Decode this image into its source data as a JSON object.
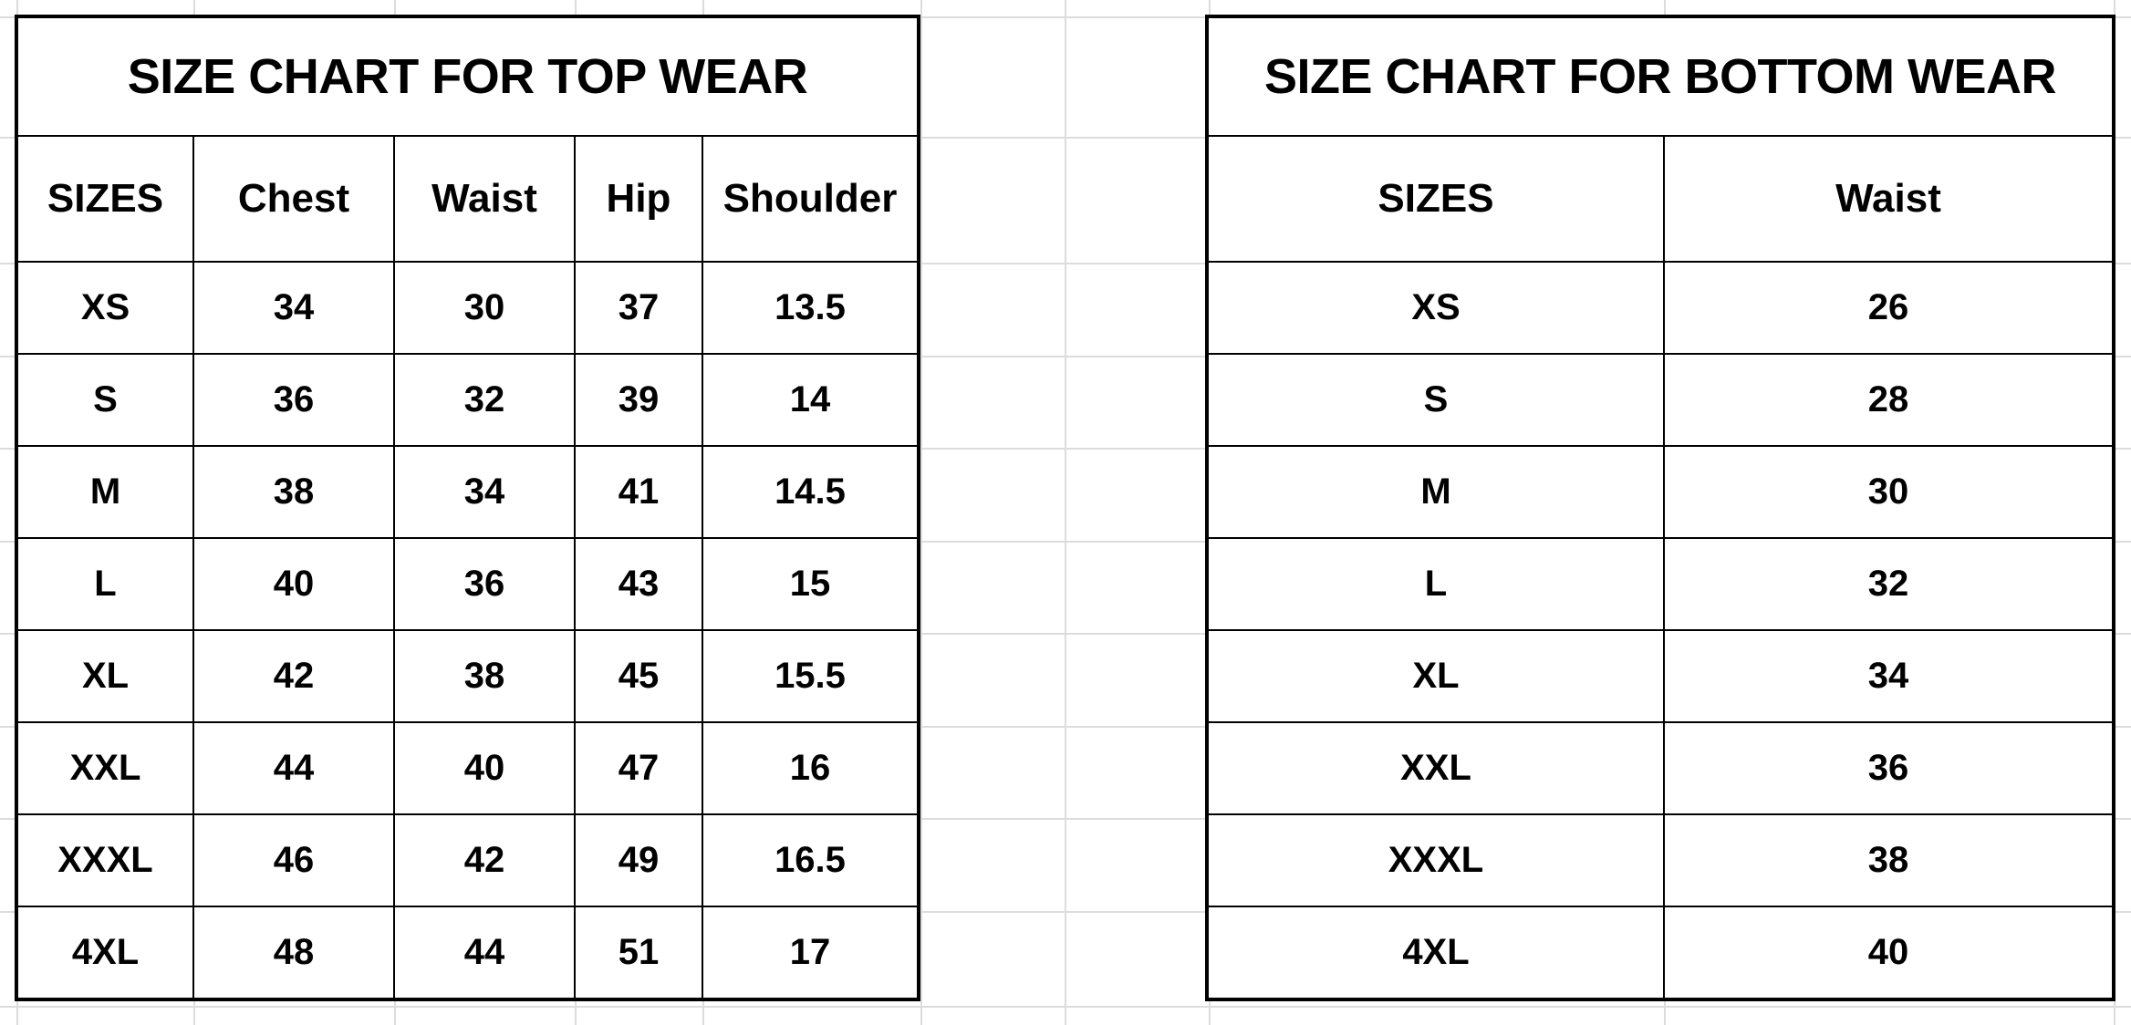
{
  "top_wear": {
    "title": "SIZE CHART FOR TOP WEAR",
    "headers": [
      "SIZES",
      "Chest",
      "Waist",
      "Hip",
      "Shoulder"
    ],
    "rows": [
      [
        "XS",
        "34",
        "30",
        "37",
        "13.5"
      ],
      [
        "S",
        "36",
        "32",
        "39",
        "14"
      ],
      [
        "M",
        "38",
        "34",
        "41",
        "14.5"
      ],
      [
        "L",
        "40",
        "36",
        "43",
        "15"
      ],
      [
        "XL",
        "42",
        "38",
        "45",
        "15.5"
      ],
      [
        "XXL",
        "44",
        "40",
        "47",
        "16"
      ],
      [
        "XXXL",
        "46",
        "42",
        "49",
        "16.5"
      ],
      [
        "4XL",
        "48",
        "44",
        "51",
        "17"
      ]
    ]
  },
  "bottom_wear": {
    "title": "SIZE CHART FOR BOTTOM WEAR",
    "headers": [
      "SIZES",
      "Waist"
    ],
    "rows": [
      [
        "XS",
        "26"
      ],
      [
        "S",
        "28"
      ],
      [
        "M",
        "30"
      ],
      [
        "L",
        "32"
      ],
      [
        "XL",
        "34"
      ],
      [
        "XXL",
        "36"
      ],
      [
        "XXXL",
        "38"
      ],
      [
        "4XL",
        "40"
      ]
    ]
  },
  "colors": {
    "border": "#000000",
    "gridline": "#dcdcdc"
  }
}
